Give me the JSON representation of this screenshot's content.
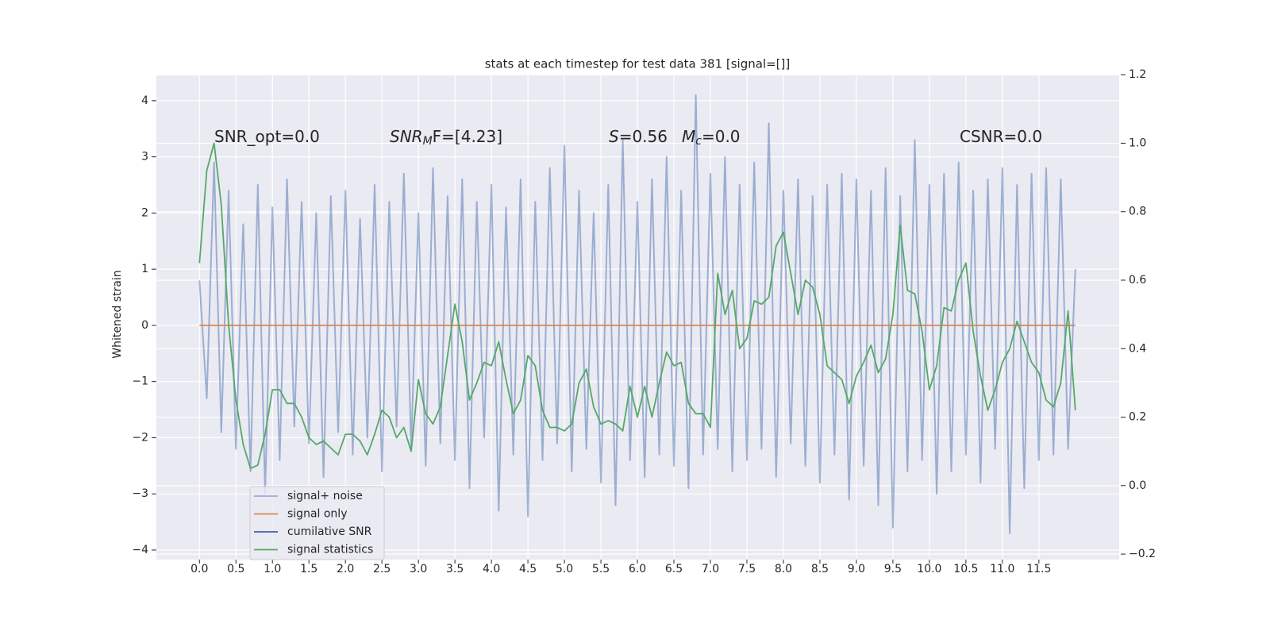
{
  "chart_data": {
    "type": "line",
    "title": "stats at each timestep for test data 381 [signal=[]]",
    "y_label": "Whitened strain",
    "xlim": [
      -0.59,
      12.6
    ],
    "ylim": [
      -4.17,
      4.45
    ],
    "y2lim": [
      -0.216,
      1.198
    ],
    "grid": true,
    "legend": "lower left",
    "xticks": [
      {
        "value": 0.0,
        "label": "0.0"
      },
      {
        "value": 0.5,
        "label": "0.5"
      },
      {
        "value": 1.0,
        "label": "1.0"
      },
      {
        "value": 1.5,
        "label": "1.5"
      },
      {
        "value": 2.0,
        "label": "2.0"
      },
      {
        "value": 2.5,
        "label": "2.5"
      },
      {
        "value": 3.0,
        "label": "3.0"
      },
      {
        "value": 3.5,
        "label": "3.5"
      },
      {
        "value": 4.0,
        "label": "4.0"
      },
      {
        "value": 4.5,
        "label": "4.5"
      },
      {
        "value": 5.0,
        "label": "5.0"
      },
      {
        "value": 5.5,
        "label": "5.5"
      },
      {
        "value": 6.0,
        "label": "6.0"
      },
      {
        "value": 6.5,
        "label": "6.5"
      },
      {
        "value": 7.0,
        "label": "7.0"
      },
      {
        "value": 7.5,
        "label": "7.5"
      },
      {
        "value": 8.0,
        "label": "8.0"
      },
      {
        "value": 8.5,
        "label": "8.5"
      },
      {
        "value": 9.0,
        "label": "9.0"
      },
      {
        "value": 9.5,
        "label": "9.5"
      },
      {
        "value": 10.0,
        "label": "10.0"
      },
      {
        "value": 10.5,
        "label": "10.5"
      },
      {
        "value": 11.0,
        "label": "11.0"
      },
      {
        "value": 11.5,
        "label": "11.5"
      }
    ],
    "yticks": [
      {
        "value": -4,
        "label": "−4"
      },
      {
        "value": -3,
        "label": "−3"
      },
      {
        "value": -2,
        "label": "−2"
      },
      {
        "value": -1,
        "label": "−1"
      },
      0,
      1,
      2,
      3,
      4
    ],
    "y2ticks": [
      {
        "value": -0.2,
        "label": "−0.2"
      },
      {
        "value": 0.0,
        "label": "0.0"
      },
      {
        "value": 0.2,
        "label": "0.2"
      },
      {
        "value": 0.4,
        "label": "0.4"
      },
      {
        "value": 0.6,
        "label": "0.6"
      },
      {
        "value": 0.8,
        "label": "0.8"
      },
      {
        "value": 1.0,
        "label": "1.0"
      },
      {
        "value": 1.2,
        "label": "1.2"
      }
    ],
    "annotations": [
      [
        {
          "text": "SNR_opt=0.0",
          "style": "normal"
        }
      ],
      [
        {
          "text": "SNR",
          "style": "italic"
        },
        {
          "text": "M",
          "style": "italic-sub"
        },
        {
          "text": "F=[4.23]",
          "style": "normal"
        }
      ],
      [
        {
          "text": "S",
          "style": "italic"
        },
        {
          "text": "=0.56",
          "style": "normal"
        }
      ],
      [
        {
          "text": "M",
          "style": "italic"
        },
        {
          "text": "c",
          "style": "italic-sub"
        },
        {
          "text": "=0.0",
          "style": "normal"
        }
      ],
      [
        {
          "text": "CSNR=0.0",
          "style": "normal"
        }
      ]
    ],
    "x": [
      0.0,
      0.1,
      0.2,
      0.3,
      0.4,
      0.5,
      0.6,
      0.7,
      0.8,
      0.9,
      1.0,
      1.1,
      1.2,
      1.3,
      1.4,
      1.5,
      1.6,
      1.7,
      1.8,
      1.9,
      2.0,
      2.1,
      2.2,
      2.3,
      2.4,
      2.5,
      2.6,
      2.7,
      2.8,
      2.9,
      3.0,
      3.1,
      3.2,
      3.3,
      3.4,
      3.5,
      3.6,
      3.7,
      3.8,
      3.9,
      4.0,
      4.1,
      4.2,
      4.3,
      4.4,
      4.5,
      4.6,
      4.7,
      4.8,
      4.9,
      5.0,
      5.1,
      5.2,
      5.3,
      5.4,
      5.5,
      5.6,
      5.7,
      5.8,
      5.9,
      6.0,
      6.1,
      6.2,
      6.3,
      6.4,
      6.5,
      6.6,
      6.7,
      6.8,
      6.9,
      7.0,
      7.1,
      7.2,
      7.3,
      7.4,
      7.5,
      7.6,
      7.7,
      7.8,
      7.9,
      8.0,
      8.1,
      8.2,
      8.3,
      8.4,
      8.5,
      8.6,
      8.7,
      8.8,
      8.9,
      9.0,
      9.1,
      9.2,
      9.3,
      9.4,
      9.5,
      9.6,
      9.7,
      9.8,
      9.9,
      10.0,
      10.1,
      10.2,
      10.3,
      10.4,
      10.5,
      10.6,
      10.7,
      10.8,
      10.9,
      11.0,
      11.1,
      11.2,
      11.3,
      11.4,
      11.5,
      11.6,
      11.7,
      11.8,
      11.9,
      12.0
    ],
    "series": [
      {
        "name": "signal+ noise",
        "color": "#4c72b0",
        "values": [
          0.8,
          -1.3,
          2.9,
          -1.9,
          2.4,
          -2.2,
          1.8,
          -2.6,
          2.5,
          -3.0,
          2.1,
          -2.4,
          2.6,
          -1.8,
          2.2,
          -2.1,
          2.0,
          -2.7,
          2.3,
          -1.9,
          2.4,
          -2.3,
          1.9,
          -2.0,
          2.5,
          -2.6,
          2.2,
          -1.8,
          2.7,
          -2.2,
          2.0,
          -2.5,
          2.8,
          -2.1,
          2.3,
          -2.4,
          2.6,
          -2.9,
          2.2,
          -2.0,
          2.5,
          -3.3,
          2.1,
          -2.3,
          2.6,
          -3.4,
          2.2,
          -2.4,
          2.8,
          -2.1,
          3.2,
          -2.6,
          2.4,
          -2.2,
          2.0,
          -2.8,
          2.5,
          -3.2,
          3.3,
          -2.4,
          2.2,
          -2.7,
          2.6,
          -2.3,
          3.0,
          -2.5,
          2.4,
          -2.9,
          4.1,
          -2.3,
          2.7,
          -2.2,
          3.0,
          -2.6,
          2.5,
          -2.4,
          2.9,
          -2.2,
          3.6,
          -2.7,
          2.4,
          -2.1,
          2.6,
          -2.5,
          2.3,
          -2.8,
          2.5,
          -2.3,
          2.7,
          -3.1,
          2.6,
          -2.5,
          2.4,
          -3.2,
          2.8,
          -3.6,
          2.3,
          -2.6,
          3.3,
          -2.4,
          2.5,
          -3.0,
          2.7,
          -2.6,
          2.9,
          -2.3,
          2.4,
          -2.8,
          2.6,
          -2.2,
          2.8,
          -3.7,
          2.5,
          -2.9,
          2.7,
          -2.4,
          2.8,
          -2.3,
          2.6,
          -2.2,
          1.0
        ]
      },
      {
        "name": "signal only",
        "color": "#dd8452",
        "x": [
          0.0,
          12.0
        ],
        "values": [
          0,
          0
        ]
      },
      {
        "name": "cumilative SNR",
        "color": "#3a5fa6",
        "x": [],
        "values": []
      },
      {
        "name": "signal statistics",
        "color": "#55a868",
        "axis": "y2",
        "values": [
          0.65,
          0.92,
          1.0,
          0.82,
          0.47,
          0.25,
          0.12,
          0.05,
          0.06,
          0.15,
          0.28,
          0.28,
          0.24,
          0.24,
          0.2,
          0.14,
          0.12,
          0.13,
          0.11,
          0.09,
          0.15,
          0.15,
          0.13,
          0.09,
          0.15,
          0.22,
          0.2,
          0.14,
          0.17,
          0.1,
          0.31,
          0.21,
          0.18,
          0.23,
          0.38,
          0.53,
          0.42,
          0.25,
          0.3,
          0.36,
          0.35,
          0.42,
          0.31,
          0.21,
          0.25,
          0.38,
          0.35,
          0.22,
          0.17,
          0.17,
          0.16,
          0.18,
          0.3,
          0.34,
          0.23,
          0.18,
          0.19,
          0.18,
          0.16,
          0.29,
          0.2,
          0.29,
          0.2,
          0.3,
          0.39,
          0.35,
          0.36,
          0.24,
          0.21,
          0.21,
          0.17,
          0.62,
          0.5,
          0.57,
          0.4,
          0.43,
          0.54,
          0.53,
          0.55,
          0.7,
          0.74,
          0.62,
          0.5,
          0.6,
          0.58,
          0.5,
          0.35,
          0.33,
          0.31,
          0.24,
          0.32,
          0.36,
          0.41,
          0.33,
          0.37,
          0.5,
          0.76,
          0.57,
          0.56,
          0.45,
          0.28,
          0.35,
          0.52,
          0.51,
          0.6,
          0.65,
          0.45,
          0.32,
          0.22,
          0.28,
          0.36,
          0.4,
          0.48,
          0.42,
          0.36,
          0.33,
          0.25,
          0.23,
          0.3,
          0.51,
          0.22
        ]
      }
    ]
  }
}
